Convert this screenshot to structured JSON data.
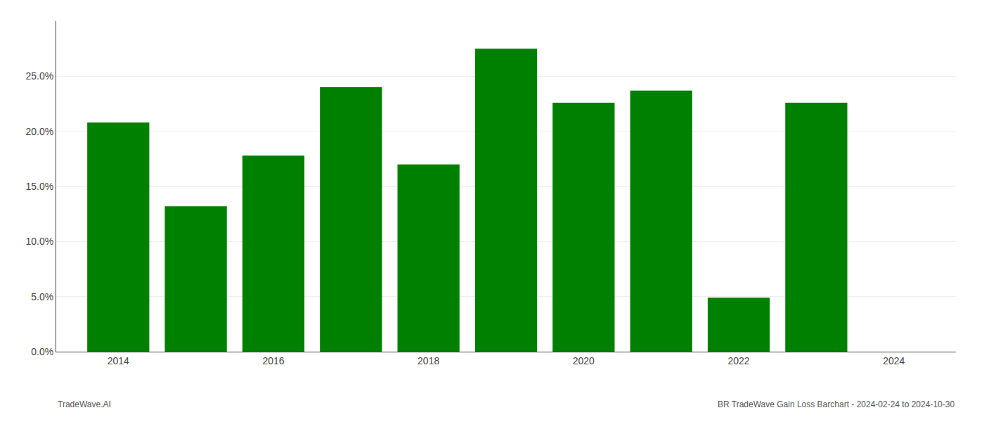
{
  "chart_data": {
    "type": "bar",
    "x": [
      2014,
      2015,
      2016,
      2017,
      2018,
      2019,
      2020,
      2021,
      2022,
      2023
    ],
    "values": [
      0.208,
      0.132,
      0.178,
      0.24,
      0.17,
      0.275,
      0.226,
      0.237,
      0.049,
      0.226
    ],
    "color": "#008000",
    "xlim": [
      2013.2,
      2024.8
    ],
    "xticks": [
      2014,
      2016,
      2018,
      2020,
      2022,
      2024
    ],
    "ylim": [
      0,
      0.3
    ],
    "yticks": [
      {
        "value": 0.0,
        "label": "0.0%"
      },
      {
        "value": 0.05,
        "label": "5.0%"
      },
      {
        "value": 0.1,
        "label": "10.0%"
      },
      {
        "value": 0.15,
        "label": "15.0%"
      },
      {
        "value": 0.2,
        "label": "20.0%"
      },
      {
        "value": 0.25,
        "label": "25.0%"
      }
    ],
    "grid": true,
    "annotations": [
      "TradeWave.AI",
      "BR TradeWave Gain Loss Barchart - 2024-02-24 to 2024-10-30"
    ]
  }
}
